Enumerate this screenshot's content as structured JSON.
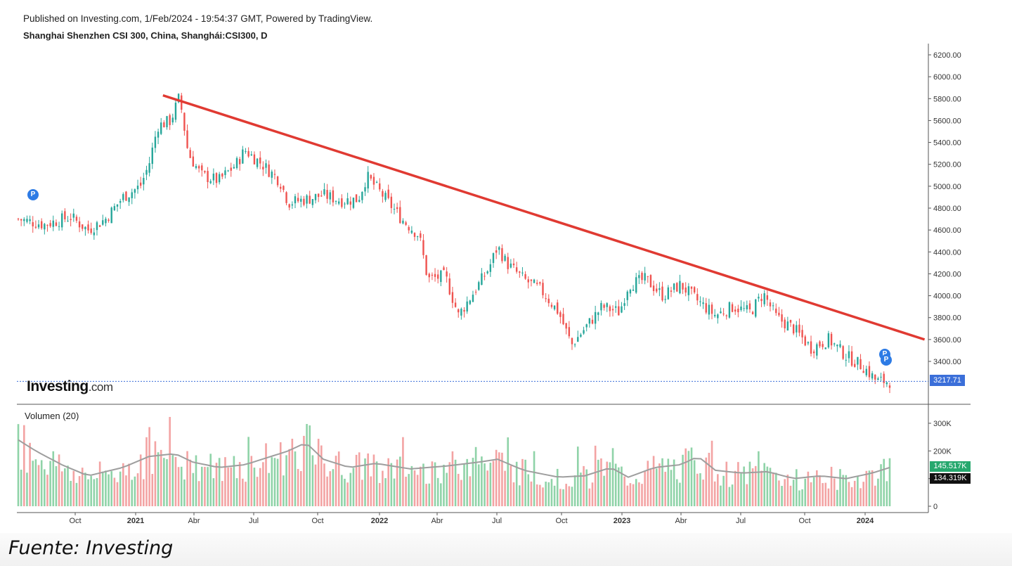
{
  "header": {
    "published": "Published on Investing.com, 1/Feb/2024 - 19:54:37 GMT, Powered by TradingView.",
    "symbol": "Shanghai Shenzhen CSI 300, China, Shanghái:CSI300, D"
  },
  "logo": {
    "brand": "Investing",
    "suffix": ".com"
  },
  "caption": "Fuente: Investing",
  "markers": {
    "p": "P"
  },
  "chart_data": [
    {
      "type": "candlestick",
      "title": "Shanghai Shenzhen CSI 300, China, Shanghái:CSI300, D",
      "y_ticks": [
        "6200.00",
        "6000.00",
        "5800.00",
        "5600.00",
        "5400.00",
        "5200.00",
        "5000.00",
        "4800.00",
        "4600.00",
        "4400.00",
        "4200.00",
        "4000.00",
        "3800.00",
        "3600.00",
        "3400.00"
      ],
      "ylim": [
        3050,
        6300
      ],
      "x_ticks": [
        "Oct",
        "2021",
        "Abr",
        "Jul",
        "Oct",
        "2022",
        "Abr",
        "Jul",
        "Oct",
        "2023",
        "Abr",
        "Jul",
        "Oct",
        "2024"
      ],
      "last_price": 3217.71,
      "last_price_label": "3217.71",
      "colors": {
        "up": "#26a69a",
        "down": "#ef5350",
        "trendline": "#e03a32",
        "price_line": "#3b6fd9"
      },
      "close_path": [
        {
          "t": 0.0,
          "v": 4700
        },
        {
          "t": 0.03,
          "v": 4650
        },
        {
          "t": 0.06,
          "v": 4720
        },
        {
          "t": 0.08,
          "v": 4600
        },
        {
          "t": 0.1,
          "v": 4700
        },
        {
          "t": 0.12,
          "v": 4900
        },
        {
          "t": 0.14,
          "v": 5000
        },
        {
          "t": 0.15,
          "v": 5200
        },
        {
          "t": 0.16,
          "v": 5550
        },
        {
          "t": 0.175,
          "v": 5600
        },
        {
          "t": 0.185,
          "v": 5820
        },
        {
          "t": 0.195,
          "v": 5300
        },
        {
          "t": 0.21,
          "v": 5100
        },
        {
          "t": 0.23,
          "v": 5050
        },
        {
          "t": 0.25,
          "v": 5200
        },
        {
          "t": 0.26,
          "v": 5330
        },
        {
          "t": 0.28,
          "v": 5200
        },
        {
          "t": 0.3,
          "v": 5050
        },
        {
          "t": 0.31,
          "v": 4850
        },
        {
          "t": 0.33,
          "v": 4880
        },
        {
          "t": 0.35,
          "v": 4920
        },
        {
          "t": 0.37,
          "v": 4870
        },
        {
          "t": 0.39,
          "v": 4880
        },
        {
          "t": 0.4,
          "v": 5090
        },
        {
          "t": 0.42,
          "v": 4900
        },
        {
          "t": 0.44,
          "v": 4700
        },
        {
          "t": 0.46,
          "v": 4550
        },
        {
          "t": 0.47,
          "v": 4150
        },
        {
          "t": 0.49,
          "v": 4180
        },
        {
          "t": 0.505,
          "v": 3820
        },
        {
          "t": 0.52,
          "v": 4000
        },
        {
          "t": 0.54,
          "v": 4250
        },
        {
          "t": 0.55,
          "v": 4450
        },
        {
          "t": 0.56,
          "v": 4300
        },
        {
          "t": 0.58,
          "v": 4150
        },
        {
          "t": 0.6,
          "v": 4050
        },
        {
          "t": 0.62,
          "v": 3850
        },
        {
          "t": 0.635,
          "v": 3550
        },
        {
          "t": 0.65,
          "v": 3700
        },
        {
          "t": 0.67,
          "v": 3900
        },
        {
          "t": 0.69,
          "v": 3850
        },
        {
          "t": 0.7,
          "v": 4100
        },
        {
          "t": 0.72,
          "v": 4150
        },
        {
          "t": 0.74,
          "v": 4000
        },
        {
          "t": 0.76,
          "v": 4100
        },
        {
          "t": 0.78,
          "v": 3950
        },
        {
          "t": 0.8,
          "v": 3820
        },
        {
          "t": 0.82,
          "v": 3900
        },
        {
          "t": 0.84,
          "v": 3850
        },
        {
          "t": 0.855,
          "v": 4020
        },
        {
          "t": 0.87,
          "v": 3800
        },
        {
          "t": 0.89,
          "v": 3700
        },
        {
          "t": 0.91,
          "v": 3520
        },
        {
          "t": 0.93,
          "v": 3600
        },
        {
          "t": 0.95,
          "v": 3450
        },
        {
          "t": 0.97,
          "v": 3350
        },
        {
          "t": 0.985,
          "v": 3220
        },
        {
          "t": 1.0,
          "v": 3217
        }
      ],
      "trendline": [
        {
          "t": 0.166,
          "v": 5830
        },
        {
          "t": 1.04,
          "v": 3600
        }
      ]
    },
    {
      "type": "bar",
      "title": "Volumen (20)",
      "y_ticks": [
        "300K",
        "200K",
        "100K",
        "0"
      ],
      "ylim": [
        0,
        320
      ],
      "moving_average": {
        "name": "20",
        "last": 134.319,
        "last_label": "134.319K",
        "color": "#9e9e9e"
      },
      "last_volume": 145.517,
      "last_volume_label": "145.517K",
      "x_ticks": [
        "Oct",
        "2021",
        "Abr",
        "Jul",
        "Oct",
        "2022",
        "Abr",
        "Jul",
        "Oct",
        "2023",
        "Abr",
        "Jul",
        "Oct",
        "2024"
      ],
      "volume_path": [
        {
          "t": 0.0,
          "v": 240
        },
        {
          "t": 0.02,
          "v": 200
        },
        {
          "t": 0.05,
          "v": 150
        },
        {
          "t": 0.08,
          "v": 110
        },
        {
          "t": 0.12,
          "v": 140
        },
        {
          "t": 0.15,
          "v": 180
        },
        {
          "t": 0.18,
          "v": 190
        },
        {
          "t": 0.2,
          "v": 160
        },
        {
          "t": 0.23,
          "v": 140
        },
        {
          "t": 0.26,
          "v": 150
        },
        {
          "t": 0.29,
          "v": 180
        },
        {
          "t": 0.31,
          "v": 200
        },
        {
          "t": 0.33,
          "v": 230
        },
        {
          "t": 0.35,
          "v": 170
        },
        {
          "t": 0.38,
          "v": 140
        },
        {
          "t": 0.41,
          "v": 155
        },
        {
          "t": 0.45,
          "v": 135
        },
        {
          "t": 0.49,
          "v": 145
        },
        {
          "t": 0.53,
          "v": 160
        },
        {
          "t": 0.55,
          "v": 170
        },
        {
          "t": 0.58,
          "v": 130
        },
        {
          "t": 0.62,
          "v": 105
        },
        {
          "t": 0.65,
          "v": 110
        },
        {
          "t": 0.68,
          "v": 140
        },
        {
          "t": 0.7,
          "v": 105
        },
        {
          "t": 0.73,
          "v": 140
        },
        {
          "t": 0.76,
          "v": 150
        },
        {
          "t": 0.78,
          "v": 180
        },
        {
          "t": 0.8,
          "v": 130
        },
        {
          "t": 0.83,
          "v": 120
        },
        {
          "t": 0.86,
          "v": 125
        },
        {
          "t": 0.89,
          "v": 100
        },
        {
          "t": 0.92,
          "v": 110
        },
        {
          "t": 0.95,
          "v": 100
        },
        {
          "t": 0.98,
          "v": 120
        },
        {
          "t": 1.0,
          "v": 140
        }
      ]
    }
  ]
}
